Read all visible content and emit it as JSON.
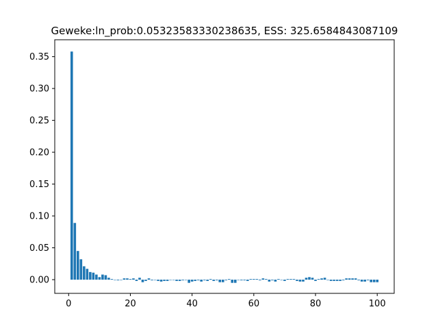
{
  "chart_data": {
    "type": "bar",
    "title": "Geweke:ln_prob:0.05323583330238635, ESS: 325.6584843087109",
    "xlabel": "",
    "ylabel": "",
    "xlim": [
      -4.5,
      105.5
    ],
    "ylim": [
      -0.0215,
      0.3765
    ],
    "x_ticks": [
      0,
      20,
      40,
      60,
      80,
      100
    ],
    "x_tick_labels": [
      "0",
      "20",
      "40",
      "60",
      "80",
      "100"
    ],
    "y_ticks": [
      0.0,
      0.05,
      0.1,
      0.15,
      0.2,
      0.25,
      0.3,
      0.35
    ],
    "y_tick_labels": [
      "0.00",
      "0.05",
      "0.10",
      "0.15",
      "0.20",
      "0.25",
      "0.30",
      "0.35"
    ],
    "bar_color": "#1f77b4",
    "grid": false,
    "x": [
      1,
      2,
      3,
      4,
      5,
      6,
      7,
      8,
      9,
      10,
      11,
      12,
      13,
      14,
      15,
      16,
      17,
      18,
      19,
      20,
      21,
      22,
      23,
      24,
      25,
      26,
      27,
      28,
      29,
      30,
      31,
      32,
      33,
      34,
      35,
      36,
      37,
      38,
      39,
      40,
      41,
      42,
      43,
      44,
      45,
      46,
      47,
      48,
      49,
      50,
      51,
      52,
      53,
      54,
      55,
      56,
      57,
      58,
      59,
      60,
      61,
      62,
      63,
      64,
      65,
      66,
      67,
      68,
      69,
      70,
      71,
      72,
      73,
      74,
      75,
      76,
      77,
      78,
      79,
      80,
      81,
      82,
      83,
      84,
      85,
      86,
      87,
      88,
      89,
      90,
      91,
      92,
      93,
      94,
      95,
      96,
      97,
      98,
      99,
      100
    ],
    "values": [
      0.358,
      0.089,
      0.045,
      0.032,
      0.021,
      0.017,
      0.012,
      0.011,
      0.008,
      0.004,
      0.008,
      0.007,
      0.003,
      0.001,
      0.0,
      -0.001,
      0.0,
      0.002,
      0.002,
      0.001,
      0.002,
      -0.002,
      0.003,
      -0.004,
      -0.002,
      0.002,
      -0.001,
      0.0,
      -0.002,
      -0.003,
      -0.002,
      -0.002,
      0.0,
      0.0,
      -0.002,
      -0.002,
      -0.001,
      0.0,
      -0.005,
      -0.003,
      -0.002,
      -0.001,
      -0.003,
      -0.001,
      -0.002,
      0.001,
      -0.002,
      -0.001,
      -0.004,
      -0.004,
      -0.001,
      0.001,
      -0.005,
      -0.005,
      0.0,
      -0.001,
      -0.001,
      -0.002,
      0.001,
      0.001,
      0.001,
      -0.001,
      0.002,
      0.001,
      -0.003,
      -0.001,
      -0.003,
      0.001,
      0.0,
      -0.002,
      0.001,
      0.001,
      0.001,
      -0.002,
      -0.003,
      -0.003,
      0.003,
      0.004,
      0.003,
      -0.002,
      0.001,
      0.002,
      0.003,
      0.0,
      -0.002,
      -0.002,
      -0.002,
      -0.002,
      -0.001,
      0.002,
      0.002,
      0.002,
      0.002,
      -0.001,
      -0.003,
      -0.003,
      -0.001,
      -0.004,
      -0.004,
      -0.004
    ]
  }
}
